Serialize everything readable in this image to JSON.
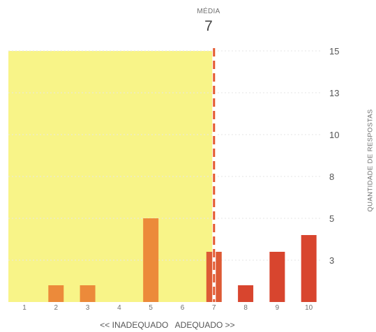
{
  "chart_data": {
    "type": "bar",
    "categories": [
      "1",
      "2",
      "3",
      "4",
      "5",
      "6",
      "7",
      "8",
      "9",
      "10"
    ],
    "values": [
      0,
      1,
      1,
      0,
      5,
      0,
      3,
      1,
      3,
      4
    ],
    "mean": {
      "label": "MÉDIA",
      "value": "7",
      "position": 7
    },
    "xlabel": "<< INADEQUADO   ADEQUADO >>",
    "ylabel": "QUANTIDADE DE RESPOSTAS",
    "ytick_labels": [
      {
        "label": "15",
        "value": 15
      },
      {
        "label": "13",
        "value": 12.5
      },
      {
        "label": "10",
        "value": 10
      },
      {
        "label": "8",
        "value": 7.5
      },
      {
        "label": "5",
        "value": 5
      },
      {
        "label": "3",
        "value": 2.5
      }
    ],
    "ylim": [
      0,
      15
    ],
    "grid": true,
    "colors": {
      "bar_inadequate": "#ec8a3a",
      "bar_adequate": "#d8452e",
      "bar_mean": "#dd5a35",
      "inadequate_region": "#f8f488",
      "mean_line": "#e4572e",
      "grid": "#e6e6e6"
    }
  }
}
